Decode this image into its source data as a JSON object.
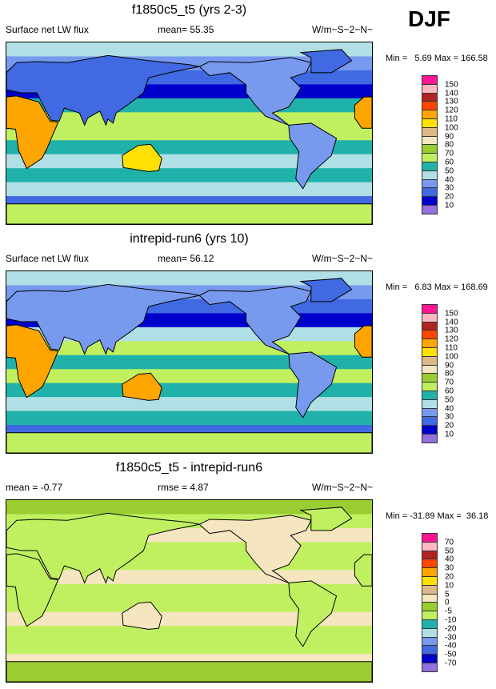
{
  "season": "DJF",
  "panels": [
    {
      "title": "f1850c5_t5 (yrs 2-3)",
      "left": "Surface net LW flux",
      "center": "mean=  55.35",
      "right": "W/m~S~2~N~",
      "minmax": "Min =   5.69 Max = 166.58",
      "levels": [
        "150",
        "140",
        "130",
        "120",
        "110",
        "100",
        "90",
        "80",
        "70",
        "60",
        "50",
        "40",
        "30",
        "20",
        "10"
      ],
      "ocean_bands": [
        11,
        12,
        13,
        14,
        10,
        9,
        9,
        10,
        11,
        10,
        11,
        13,
        8
      ],
      "land": {
        "africa": 4,
        "eurasia": 13,
        "australia": 5,
        "namerica": 12,
        "samerica": 12,
        "greenland": 13,
        "antarctica": 9
      }
    },
    {
      "title": "intrepid-run6 (yrs 10)",
      "left": "Surface net LW flux",
      "center": "mean=  56.12",
      "right": "W/m~S~2~N~",
      "minmax": "Min =   6.83 Max = 168.69",
      "levels": [
        "150",
        "140",
        "130",
        "120",
        "110",
        "100",
        "90",
        "80",
        "70",
        "60",
        "50",
        "40",
        "30",
        "20",
        "10"
      ],
      "ocean_bands": [
        11,
        12,
        13,
        14,
        11,
        9,
        10,
        9,
        10,
        11,
        10,
        13,
        8
      ],
      "land": {
        "africa": 4,
        "eurasia": 12,
        "australia": 4,
        "namerica": 12,
        "samerica": 12,
        "greenland": 13,
        "antarctica": 9
      }
    },
    {
      "title": "f1850c5_t5 - intrepid-run6",
      "left": "mean =  -0.77",
      "center": "rmse =   4.87",
      "right": "W/m~S~2~N~",
      "minmax": "Min = -31.89 Max =  36.18",
      "levels": [
        "70",
        "50",
        "40",
        "30",
        "20",
        "10",
        "5",
        "0",
        "-5",
        "-10",
        "-20",
        "-30",
        "-40",
        "-50",
        "-70"
      ],
      "ocean_bands": [
        8,
        9,
        7,
        9,
        9,
        7,
        9,
        9,
        7,
        9,
        9,
        7,
        8
      ],
      "land": {
        "africa": 9,
        "eurasia": 9,
        "australia": 7,
        "namerica": 7,
        "samerica": 9,
        "greenland": 9,
        "antarctica": 8
      }
    }
  ],
  "palette": [
    "#FF1493",
    "#FFB6C1",
    "#B22222",
    "#FF4500",
    "#FFA500",
    "#FFE000",
    "#DEB887",
    "#F5E6C0",
    "#9ACD32",
    "#C0F060",
    "#20B2AA",
    "#B0E0E6",
    "#7799EE",
    "#4169E1",
    "#0000CD",
    "#9370DB"
  ]
}
